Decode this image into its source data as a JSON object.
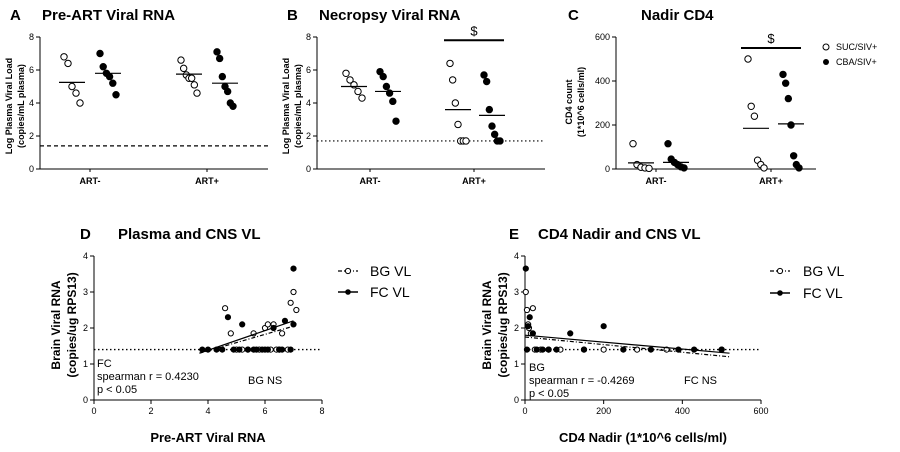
{
  "chart_data": [
    {
      "panel": "A",
      "type": "scatter",
      "title": "Pre-ART Viral RNA",
      "ylabel": [
        "Log Plasma Viral Load",
        "(copies/mL plasma)"
      ],
      "ylim": [
        0,
        8
      ],
      "yticks": [
        0,
        2,
        4,
        6,
        8
      ],
      "categories": [
        "ART-",
        "ART+"
      ],
      "series": [
        {
          "name": "SUC/SIV+",
          "marker": "open",
          "groups": [
            [
              6.8,
              6.4,
              5.0,
              4.6,
              4.0
            ],
            [
              6.6,
              6.1,
              5.7,
              5.5,
              5.5,
              5.1,
              4.6
            ]
          ],
          "medians": [
            5.25,
            5.75
          ]
        },
        {
          "name": "CBA/SIV+",
          "marker": "filled",
          "groups": [
            [
              7.0,
              6.2,
              5.8,
              5.6,
              5.2,
              4.5
            ],
            [
              7.1,
              6.7,
              5.6,
              5.0,
              4.7,
              4.0,
              3.8
            ]
          ],
          "medians": [
            5.8,
            5.2
          ]
        }
      ],
      "reference_line": {
        "y": 1.4,
        "style": "dashed"
      }
    },
    {
      "panel": "B",
      "type": "scatter",
      "title": "Necropsy Viral RNA",
      "ylabel": [
        "Log Plasma Viral Load",
        "(copies/mL plasma)"
      ],
      "ylim": [
        0,
        8
      ],
      "yticks": [
        0,
        2,
        4,
        6,
        8
      ],
      "categories": [
        "ART-",
        "ART+"
      ],
      "series": [
        {
          "name": "SUC/SIV+",
          "marker": "open",
          "groups": [
            [
              5.8,
              5.4,
              5.1,
              4.7,
              4.3
            ],
            [
              6.4,
              5.4,
              4.0,
              2.7,
              1.7,
              1.7,
              1.7
            ]
          ],
          "medians": [
            5.0,
            3.6
          ]
        },
        {
          "name": "CBA/SIV+",
          "marker": "filled",
          "groups": [
            [
              5.9,
              5.6,
              5.0,
              4.6,
              4.1,
              2.9
            ],
            [
              5.7,
              5.3,
              3.6,
              2.6,
              2.1,
              1.7,
              1.7
            ]
          ],
          "medians": [
            4.7,
            3.25
          ]
        }
      ],
      "reference_line": {
        "y": 1.7,
        "style": "dotted"
      },
      "significance": {
        "group": "ART+",
        "label": "$",
        "y": 7.8
      }
    },
    {
      "panel": "C",
      "type": "scatter",
      "title": "Nadir CD4",
      "ylabel": [
        "CD4 count",
        "(1*10^6 cells/ml)"
      ],
      "ylim": [
        0,
        600
      ],
      "yticks": [
        0,
        200,
        400,
        600
      ],
      "categories": [
        "ART-",
        "ART+"
      ],
      "legend": [
        "SUC/SIV+",
        "CBA/SIV+"
      ],
      "series": [
        {
          "name": "SUC/SIV+",
          "marker": "open",
          "groups": [
            [
              115,
              20,
              8,
              5,
              3
            ],
            [
              500,
              285,
              240,
              40,
              20,
              5
            ]
          ],
          "medians": [
            28,
            185
          ]
        },
        {
          "name": "CBA/SIV+",
          "marker": "filled",
          "groups": [
            [
              115,
              45,
              30,
              20,
              10,
              5
            ],
            [
              430,
              390,
              320,
              200,
              60,
              20,
              5
            ]
          ],
          "medians": [
            30,
            205
          ]
        }
      ],
      "significance": {
        "group": "ART+",
        "label": "$",
        "y": 550
      }
    },
    {
      "panel": "D",
      "type": "scatter",
      "title": "Plasma and CNS VL",
      "xlabel": "Pre-ART Viral RNA",
      "ylabel": [
        "Brain Viral RNA",
        "(copies/ug RPS13)"
      ],
      "xlim": [
        0,
        8
      ],
      "ylim": [
        0,
        4
      ],
      "xticks": [
        0,
        2,
        4,
        6,
        8
      ],
      "yticks": [
        0,
        1,
        2,
        3,
        4
      ],
      "legend": [
        "BG VL",
        "FC VL"
      ],
      "series": [
        {
          "name": "BG VL",
          "marker": "open",
          "points": [
            [
              4.6,
              2.55
            ],
            [
              4.8,
              1.85
            ],
            [
              5.0,
              1.4
            ],
            [
              5.2,
              1.4
            ],
            [
              5.4,
              1.4
            ],
            [
              5.6,
              1.85
            ],
            [
              5.8,
              1.4
            ],
            [
              6.0,
              2.0
            ],
            [
              6.1,
              2.1
            ],
            [
              6.2,
              1.4
            ],
            [
              6.3,
              2.1
            ],
            [
              6.4,
              1.4
            ],
            [
              6.5,
              1.4
            ],
            [
              6.6,
              1.85
            ],
            [
              6.8,
              1.4
            ],
            [
              6.9,
              2.7
            ],
            [
              7.0,
              3.0
            ],
            [
              7.1,
              2.5
            ]
          ]
        },
        {
          "name": "FC VL",
          "marker": "filled",
          "points": [
            [
              3.8,
              1.4
            ],
            [
              4.0,
              1.4
            ],
            [
              4.3,
              1.4
            ],
            [
              4.5,
              1.4
            ],
            [
              4.7,
              2.3
            ],
            [
              4.9,
              1.4
            ],
            [
              5.1,
              1.4
            ],
            [
              5.2,
              2.1
            ],
            [
              5.4,
              1.4
            ],
            [
              5.6,
              1.4
            ],
            [
              5.7,
              1.4
            ],
            [
              5.9,
              1.4
            ],
            [
              6.0,
              1.4
            ],
            [
              6.1,
              1.4
            ],
            [
              6.3,
              2.0
            ],
            [
              6.5,
              1.4
            ],
            [
              6.6,
              1.4
            ],
            [
              6.7,
              2.2
            ],
            [
              6.9,
              1.4
            ],
            [
              7.0,
              2.1
            ],
            [
              7.0,
              3.65
            ]
          ]
        }
      ],
      "fit_lines": [
        {
          "name": "BG VL",
          "style": "dash-dot",
          "x": [
            3.7,
            7.0
          ],
          "y": [
            1.3,
            2.05
          ]
        },
        {
          "name": "FC VL",
          "style": "solid",
          "x": [
            3.7,
            7.0
          ],
          "y": [
            1.3,
            2.2
          ]
        }
      ],
      "reference_line": {
        "y": 1.4,
        "style": "dotted"
      },
      "annotations": [
        "FC",
        "spearman r = 0.4230",
        "p < 0.05",
        "BG NS"
      ]
    },
    {
      "panel": "E",
      "type": "scatter",
      "title": "CD4 Nadir and CNS VL",
      "xlabel": "CD4 Nadir (1*10^6 cells/ml)",
      "ylabel": [
        "Brain Viral RNA",
        "(copies/ug RPS13)"
      ],
      "xlim": [
        0,
        600
      ],
      "ylim": [
        0,
        4
      ],
      "xticks": [
        0,
        200,
        400,
        600
      ],
      "yticks": [
        0,
        1,
        2,
        3,
        4
      ],
      "legend": [
        "BG VL",
        "FC VL"
      ],
      "series": [
        {
          "name": "BG VL",
          "marker": "open",
          "points": [
            [
              2,
              3.0
            ],
            [
              5,
              2.5
            ],
            [
              8,
              2.1
            ],
            [
              10,
              2.0
            ],
            [
              15,
              1.85
            ],
            [
              20,
              2.55
            ],
            [
              25,
              1.4
            ],
            [
              40,
              1.4
            ],
            [
              60,
              1.4
            ],
            [
              90,
              1.4
            ],
            [
              150,
              1.4
            ],
            [
              200,
              1.4
            ],
            [
              285,
              1.4
            ],
            [
              360,
              1.4
            ],
            [
              500,
              1.4
            ]
          ]
        },
        {
          "name": "FC VL",
          "marker": "filled",
          "points": [
            [
              2,
              3.65
            ],
            [
              5,
              1.4
            ],
            [
              8,
              2.05
            ],
            [
              12,
              2.3
            ],
            [
              20,
              1.85
            ],
            [
              30,
              1.4
            ],
            [
              45,
              1.4
            ],
            [
              60,
              1.4
            ],
            [
              80,
              1.4
            ],
            [
              115,
              1.85
            ],
            [
              150,
              1.4
            ],
            [
              200,
              2.05
            ],
            [
              250,
              1.4
            ],
            [
              320,
              1.4
            ],
            [
              390,
              1.4
            ],
            [
              430,
              1.4
            ],
            [
              500,
              1.4
            ]
          ]
        }
      ],
      "fit_lines": [
        {
          "name": "BG VL",
          "style": "dash-dot",
          "x": [
            0,
            520
          ],
          "y": [
            1.75,
            1.2
          ]
        },
        {
          "name": "FC VL",
          "style": "solid",
          "x": [
            0,
            520
          ],
          "y": [
            1.8,
            1.3
          ]
        }
      ],
      "reference_line": {
        "y": 1.4,
        "style": "dotted"
      },
      "annotations": [
        "BG",
        "spearman r = -0.4269",
        "p < 0.05",
        "FC NS"
      ]
    }
  ]
}
